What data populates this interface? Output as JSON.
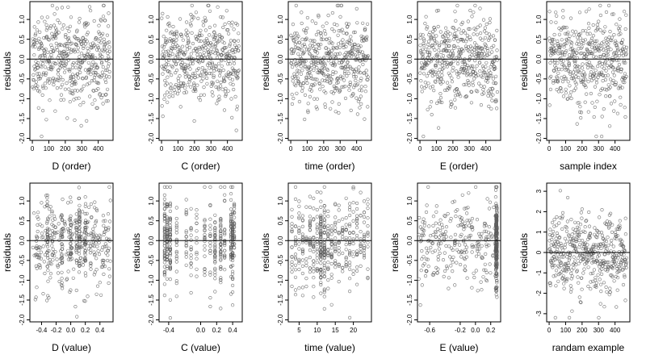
{
  "figure": {
    "background": "#ffffff",
    "point_color": "#5a5a5a",
    "line_color": "#000000"
  },
  "chart_data": [
    {
      "type": "scatter",
      "xlabel": "D (order)",
      "ylabel": "residuals",
      "xlim": [
        -15,
        490
      ],
      "ylim": [
        -2.05,
        1.45
      ],
      "xticks": [
        {
          "v": 0,
          "t": "0"
        },
        {
          "v": 100,
          "t": "100"
        },
        {
          "v": 200,
          "t": "200"
        },
        {
          "v": 300,
          "t": "300"
        },
        {
          "v": 400,
          "t": "400"
        }
      ],
      "yticks": [
        {
          "v": -2,
          "t": "-2.0"
        },
        {
          "v": -1.5,
          "t": "-1.5"
        },
        {
          "v": -1,
          "t": "-1.0"
        },
        {
          "v": -0.5,
          "t": "-0.5"
        },
        {
          "v": 0,
          "t": "0.0"
        },
        {
          "v": 0.5,
          "t": "0.5"
        },
        {
          "v": 1,
          "t": "1.0"
        }
      ],
      "hline": 0,
      "points": {
        "x_mode": "order",
        "n": 470,
        "mean": 0,
        "sd": 0.52,
        "skew": -0.9,
        "min": -1.95,
        "max": 1.35,
        "seed": 11
      }
    },
    {
      "type": "scatter",
      "xlabel": "C (order)",
      "ylabel": "residuals",
      "xlim": [
        -15,
        490
      ],
      "ylim": [
        -2.05,
        1.45
      ],
      "xticks": [
        {
          "v": 0,
          "t": "0"
        },
        {
          "v": 100,
          "t": "100"
        },
        {
          "v": 200,
          "t": "200"
        },
        {
          "v": 300,
          "t": "300"
        },
        {
          "v": 400,
          "t": "400"
        }
      ],
      "yticks": [
        {
          "v": -2,
          "t": "-2.0"
        },
        {
          "v": -1.5,
          "t": "-1.5"
        },
        {
          "v": -1,
          "t": "-1.0"
        },
        {
          "v": -0.5,
          "t": "-0.5"
        },
        {
          "v": 0,
          "t": "0.0"
        },
        {
          "v": 0.5,
          "t": "0.5"
        },
        {
          "v": 1,
          "t": "1.0"
        }
      ],
      "hline": 0,
      "points": {
        "x_mode": "order",
        "n": 470,
        "mean": 0,
        "sd": 0.52,
        "skew": -0.9,
        "min": -1.95,
        "max": 1.35,
        "seed": 23
      }
    },
    {
      "type": "scatter",
      "xlabel": "time (order)",
      "ylabel": "residuals",
      "xlim": [
        -15,
        490
      ],
      "ylim": [
        -2.05,
        1.45
      ],
      "xticks": [
        {
          "v": 0,
          "t": "0"
        },
        {
          "v": 100,
          "t": "100"
        },
        {
          "v": 200,
          "t": "200"
        },
        {
          "v": 300,
          "t": "300"
        },
        {
          "v": 400,
          "t": "400"
        }
      ],
      "yticks": [
        {
          "v": -2,
          "t": "-2.0"
        },
        {
          "v": -1.5,
          "t": "-1.5"
        },
        {
          "v": -1,
          "t": "-1.0"
        },
        {
          "v": -0.5,
          "t": "-0.5"
        },
        {
          "v": 0,
          "t": "0.0"
        },
        {
          "v": 0.5,
          "t": "0.5"
        },
        {
          "v": 1,
          "t": "1.0"
        }
      ],
      "hline": 0,
      "points": {
        "x_mode": "order",
        "n": 470,
        "mean": 0,
        "sd": 0.52,
        "skew": -0.9,
        "min": -1.95,
        "max": 1.35,
        "seed": 37
      }
    },
    {
      "type": "scatter",
      "xlabel": "E (order)",
      "ylabel": "residuals",
      "xlim": [
        -15,
        490
      ],
      "ylim": [
        -2.05,
        1.45
      ],
      "xticks": [
        {
          "v": 0,
          "t": "0"
        },
        {
          "v": 100,
          "t": "100"
        },
        {
          "v": 200,
          "t": "200"
        },
        {
          "v": 300,
          "t": "300"
        },
        {
          "v": 400,
          "t": "400"
        }
      ],
      "yticks": [
        {
          "v": -2,
          "t": "-2.0"
        },
        {
          "v": -1.5,
          "t": "-1.5"
        },
        {
          "v": -1,
          "t": "-1.0"
        },
        {
          "v": -0.5,
          "t": "-0.5"
        },
        {
          "v": 0,
          "t": "0.0"
        },
        {
          "v": 0.5,
          "t": "0.5"
        },
        {
          "v": 1,
          "t": "1.0"
        }
      ],
      "hline": 0,
      "points": {
        "x_mode": "order",
        "n": 470,
        "mean": 0,
        "sd": 0.52,
        "skew": -0.9,
        "min": -1.95,
        "max": 1.35,
        "seed": 41
      }
    },
    {
      "type": "scatter",
      "xlabel": "sample index",
      "ylabel": "residuals",
      "xlim": [
        -15,
        490
      ],
      "ylim": [
        -2.05,
        1.45
      ],
      "xticks": [
        {
          "v": 0,
          "t": "0"
        },
        {
          "v": 100,
          "t": "100"
        },
        {
          "v": 200,
          "t": "200"
        },
        {
          "v": 300,
          "t": "300"
        },
        {
          "v": 400,
          "t": "400"
        }
      ],
      "yticks": [
        {
          "v": -2,
          "t": "-2.0"
        },
        {
          "v": -1.5,
          "t": "-1.5"
        },
        {
          "v": -1,
          "t": "-1.0"
        },
        {
          "v": -0.5,
          "t": "-0.5"
        },
        {
          "v": 0,
          "t": "0.0"
        },
        {
          "v": 0.5,
          "t": "0.5"
        },
        {
          "v": 1,
          "t": "1.0"
        }
      ],
      "hline": 0,
      "points": {
        "x_mode": "order",
        "n": 470,
        "mean": 0,
        "sd": 0.52,
        "skew": -0.9,
        "min": -1.95,
        "max": 1.35,
        "seed": 53
      }
    },
    {
      "type": "scatter",
      "xlabel": "D (value)",
      "ylabel": "residuals",
      "xlim": [
        -0.56,
        0.58
      ],
      "ylim": [
        -2.05,
        1.45
      ],
      "xticks": [
        {
          "v": -0.4,
          "t": "-0.4"
        },
        {
          "v": -0.2,
          "t": "-0.2"
        },
        {
          "v": 0,
          "t": "0.0"
        },
        {
          "v": 0.2,
          "t": "0.2"
        },
        {
          "v": 0.4,
          "t": "0.4"
        }
      ],
      "yticks": [
        {
          "v": -2,
          "t": "-2.0"
        },
        {
          "v": -1.5,
          "t": "-1.5"
        },
        {
          "v": -1,
          "t": "-1.0"
        },
        {
          "v": -0.5,
          "t": "-0.5"
        },
        {
          "v": 0,
          "t": "0.0"
        },
        {
          "v": 0.5,
          "t": "0.5"
        },
        {
          "v": 1,
          "t": "1.0"
        }
      ],
      "hline": 0,
      "points": {
        "x_mode": "uniform",
        "x_range": [
          -0.52,
          0.55
        ],
        "x_clusters": [
          -0.32,
          -0.12,
          0.0,
          0.08,
          0.12,
          0.2
        ],
        "cluster_frac": 0.35,
        "n": 470,
        "mean": 0,
        "sd": 0.52,
        "skew": -0.9,
        "min": -1.95,
        "max": 1.35,
        "seed": 61
      }
    },
    {
      "type": "scatter",
      "xlabel": "C (value)",
      "ylabel": "residuals",
      "xlim": [
        -0.52,
        0.52
      ],
      "ylim": [
        -2.05,
        1.45
      ],
      "xticks": [
        {
          "v": -0.4,
          "t": "-0.4"
        },
        {
          "v": 0,
          "t": "0.0"
        },
        {
          "v": 0.2,
          "t": "0.2"
        },
        {
          "v": 0.4,
          "t": "0.4"
        }
      ],
      "yticks": [
        {
          "v": -2,
          "t": "-2.0"
        },
        {
          "v": -1.5,
          "t": "-1.5"
        },
        {
          "v": -1,
          "t": "-1.0"
        },
        {
          "v": -0.5,
          "t": "-0.5"
        },
        {
          "v": 0,
          "t": "0.0"
        },
        {
          "v": 0.5,
          "t": "0.5"
        },
        {
          "v": 1,
          "t": "1.0"
        }
      ],
      "hline": 0,
      "points": {
        "x_mode": "discrete",
        "x_values": [
          -0.45,
          -0.42,
          -0.38,
          -0.3,
          -0.18,
          -0.12,
          -0.05,
          0.05,
          0.12,
          0.18,
          0.25,
          0.3,
          0.38,
          0.4,
          0.42
        ],
        "x_weights": [
          3,
          3,
          2,
          1,
          1,
          1,
          1,
          1,
          1,
          2,
          2,
          1,
          2,
          3,
          2
        ],
        "n": 470,
        "mean": 0,
        "sd": 0.52,
        "skew": -0.9,
        "min": -1.95,
        "max": 1.35,
        "seed": 71
      }
    },
    {
      "type": "scatter",
      "xlabel": "time (value)",
      "ylabel": "residuals",
      "xlim": [
        2,
        25
      ],
      "ylim": [
        -2.05,
        1.45
      ],
      "xticks": [
        {
          "v": 5,
          "t": "5"
        },
        {
          "v": 10,
          "t": "10"
        },
        {
          "v": 15,
          "t": "15"
        },
        {
          "v": 20,
          "t": "20"
        }
      ],
      "yticks": [
        {
          "v": -2,
          "t": "-2.0"
        },
        {
          "v": -1.5,
          "t": "-1.5"
        },
        {
          "v": -1,
          "t": "-1.0"
        },
        {
          "v": -0.5,
          "t": "-0.5"
        },
        {
          "v": 0,
          "t": "0.0"
        },
        {
          "v": 0.5,
          "t": "0.5"
        },
        {
          "v": 1,
          "t": "1.0"
        }
      ],
      "hline": 0,
      "points": {
        "x_mode": "discrete",
        "x_values": [
          3,
          4,
          5,
          6,
          7,
          8,
          9,
          10,
          11,
          12,
          13,
          14,
          15,
          16,
          17,
          18,
          19,
          20,
          21,
          22,
          23,
          24
        ],
        "x_weights": [
          1,
          1,
          1,
          1,
          1,
          1,
          1,
          1,
          3,
          3,
          1,
          1,
          1,
          1,
          1,
          1,
          1,
          1,
          1,
          1,
          1,
          1
        ],
        "n": 470,
        "mean": 0,
        "sd": 0.52,
        "skew": -0.9,
        "min": -1.95,
        "max": 1.35,
        "seed": 83
      }
    },
    {
      "type": "scatter",
      "xlabel": "E (value)",
      "ylabel": "residuals",
      "xlim": [
        -0.76,
        0.33
      ],
      "ylim": [
        -2.05,
        1.45
      ],
      "xticks": [
        {
          "v": -0.6,
          "t": "-0.6"
        },
        {
          "v": -0.2,
          "t": "-0.2"
        },
        {
          "v": 0,
          "t": "0.0"
        },
        {
          "v": 0.2,
          "t": "0.2"
        }
      ],
      "yticks": [
        {
          "v": -2,
          "t": "-2.0"
        },
        {
          "v": -1.5,
          "t": "-1.5"
        },
        {
          "v": -1,
          "t": "-1.0"
        },
        {
          "v": -0.5,
          "t": "-0.5"
        },
        {
          "v": 0,
          "t": "0.0"
        },
        {
          "v": 0.5,
          "t": "0.5"
        },
        {
          "v": 1,
          "t": "1.0"
        }
      ],
      "hline": 0,
      "points": {
        "x_mode": "uniform",
        "x_range": [
          -0.75,
          0.28
        ],
        "x_clusters": [
          0.27,
          0.275,
          0.28
        ],
        "cluster_frac": 0.45,
        "n": 470,
        "mean": 0,
        "sd": 0.52,
        "skew": -0.9,
        "min": -1.95,
        "max": 1.35,
        "seed": 97
      }
    },
    {
      "type": "scatter",
      "xlabel": "randam example",
      "ylabel": "residuals",
      "xlim": [
        -15,
        490
      ],
      "ylim": [
        -3.4,
        3.4
      ],
      "xticks": [
        {
          "v": 0,
          "t": "0"
        },
        {
          "v": 100,
          "t": "100"
        },
        {
          "v": 200,
          "t": "200"
        },
        {
          "v": 300,
          "t": "300"
        },
        {
          "v": 400,
          "t": "400"
        }
      ],
      "yticks": [
        {
          "v": -3,
          "t": "-3"
        },
        {
          "v": -2,
          "t": "-2"
        },
        {
          "v": -1,
          "t": "-1"
        },
        {
          "v": 0,
          "t": "0"
        },
        {
          "v": 1,
          "t": "1"
        },
        {
          "v": 2,
          "t": "2"
        },
        {
          "v": 3,
          "t": "3"
        }
      ],
      "hline": 0,
      "points": {
        "x_mode": "order",
        "n": 470,
        "mean": 0,
        "sd": 1.0,
        "skew": 0,
        "min": -3.2,
        "max": 3.2,
        "seed": 109
      }
    }
  ]
}
